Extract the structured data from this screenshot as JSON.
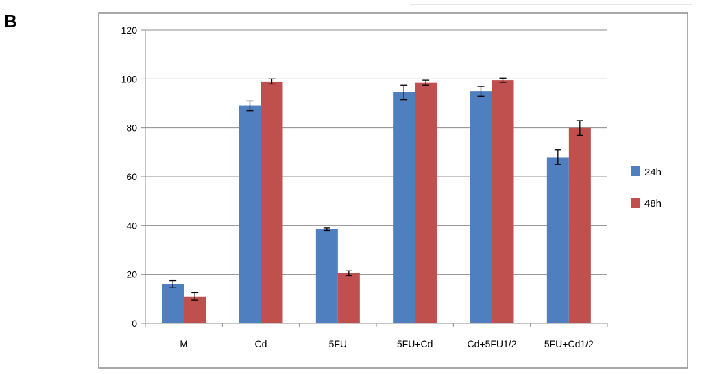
{
  "panel_label": "B",
  "chart_data": {
    "type": "bar",
    "title": "",
    "xlabel": "",
    "ylabel": "",
    "categories": [
      "M",
      "Cd",
      "5FU",
      "5FU+Cd",
      "Cd+5FU1/2",
      "5FU+Cd1/2"
    ],
    "series": [
      {
        "name": "24h",
        "color": "#4f7fbf",
        "values": [
          16,
          89,
          38.5,
          94.5,
          95,
          68
        ],
        "errors": [
          1.5,
          2,
          0.5,
          3,
          2,
          3
        ]
      },
      {
        "name": "48h",
        "color": "#c0504d",
        "values": [
          11,
          99,
          20.5,
          98.5,
          99.5,
          80
        ],
        "errors": [
          1.5,
          1,
          1,
          1,
          0.8,
          3
        ]
      }
    ],
    "ylim": [
      0,
      120
    ],
    "yticks": [
      0,
      20,
      40,
      60,
      80,
      100,
      120
    ],
    "grid": true,
    "legend": "right"
  }
}
